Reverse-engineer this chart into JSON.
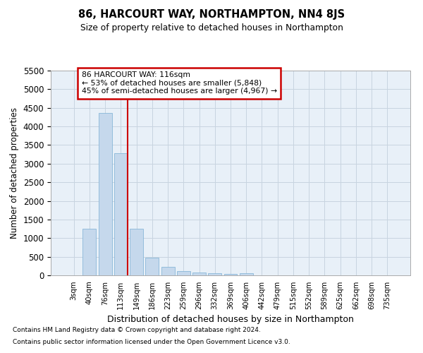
{
  "title": "86, HARCOURT WAY, NORTHAMPTON, NN4 8JS",
  "subtitle": "Size of property relative to detached houses in Northampton",
  "xlabel": "Distribution of detached houses by size in Northampton",
  "ylabel": "Number of detached properties",
  "footnote1": "Contains HM Land Registry data © Crown copyright and database right 2024.",
  "footnote2": "Contains public sector information licensed under the Open Government Licence v3.0.",
  "categories": [
    "3sqm",
    "40sqm",
    "76sqm",
    "113sqm",
    "149sqm",
    "186sqm",
    "223sqm",
    "259sqm",
    "296sqm",
    "332sqm",
    "369sqm",
    "406sqm",
    "442sqm",
    "479sqm",
    "515sqm",
    "552sqm",
    "589sqm",
    "625sqm",
    "662sqm",
    "698sqm",
    "735sqm"
  ],
  "values": [
    0,
    1260,
    4360,
    3290,
    1255,
    480,
    225,
    105,
    75,
    55,
    40,
    55,
    5,
    2,
    1,
    0,
    0,
    0,
    0,
    0,
    0
  ],
  "bar_color": "#c5d8ec",
  "bar_edge_color": "#7aafd4",
  "grid_color": "#c8d4e0",
  "red_line_index": 3,
  "red_line_color": "#cc0000",
  "annotation_box_color": "#cc0000",
  "annotation_text_line1": "86 HARCOURT WAY: 116sqm",
  "annotation_text_line2": "← 53% of detached houses are smaller (5,848)",
  "annotation_text_line3": "45% of semi-detached houses are larger (4,967) →",
  "ylim": [
    0,
    5500
  ],
  "yticks": [
    0,
    500,
    1000,
    1500,
    2000,
    2500,
    3000,
    3500,
    4000,
    4500,
    5000,
    5500
  ],
  "background_color": "#ffffff",
  "plot_background": "#e8f0f8"
}
